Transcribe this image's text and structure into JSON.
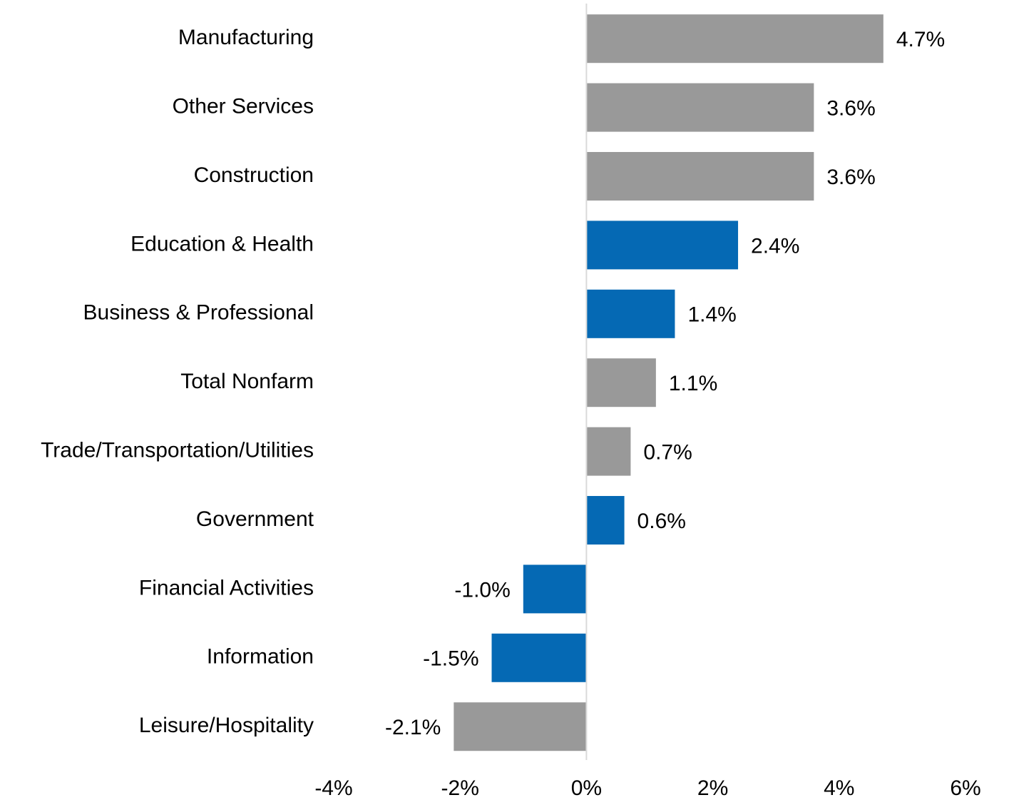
{
  "chart_data": {
    "type": "hbar",
    "categories": [
      "Manufacturing",
      "Other Services",
      "Construction",
      "Education & Health",
      "Business & Professional",
      "Total Nonfarm",
      "Trade/Transportation/Utilities",
      "Government",
      "Financial Activities",
      "Information",
      "Leisure/Hospitality"
    ],
    "values": [
      4.7,
      3.6,
      3.6,
      2.4,
      1.4,
      1.1,
      0.7,
      0.6,
      -1.0,
      -1.5,
      -2.1
    ],
    "value_labels": [
      "4.7%",
      "3.6%",
      "3.6%",
      "2.4%",
      "1.4%",
      "1.1%",
      "0.7%",
      "0.6%",
      "-1.0%",
      "-1.5%",
      "-2.1%"
    ],
    "colors": [
      "#999999",
      "#999999",
      "#999999",
      "#0569b4",
      "#0569b4",
      "#999999",
      "#999999",
      "#0569b4",
      "#0569b4",
      "#0569b4",
      "#999999"
    ],
    "xlim": [
      -4,
      6
    ],
    "xticks": [
      {
        "value": -4,
        "label": "-4%"
      },
      {
        "value": -2,
        "label": "-2%"
      },
      {
        "value": 0,
        "label": "0%"
      },
      {
        "value": 2,
        "label": "2%"
      },
      {
        "value": 4,
        "label": "4%"
      },
      {
        "value": 6,
        "label": "6%"
      }
    ],
    "grid": false
  }
}
